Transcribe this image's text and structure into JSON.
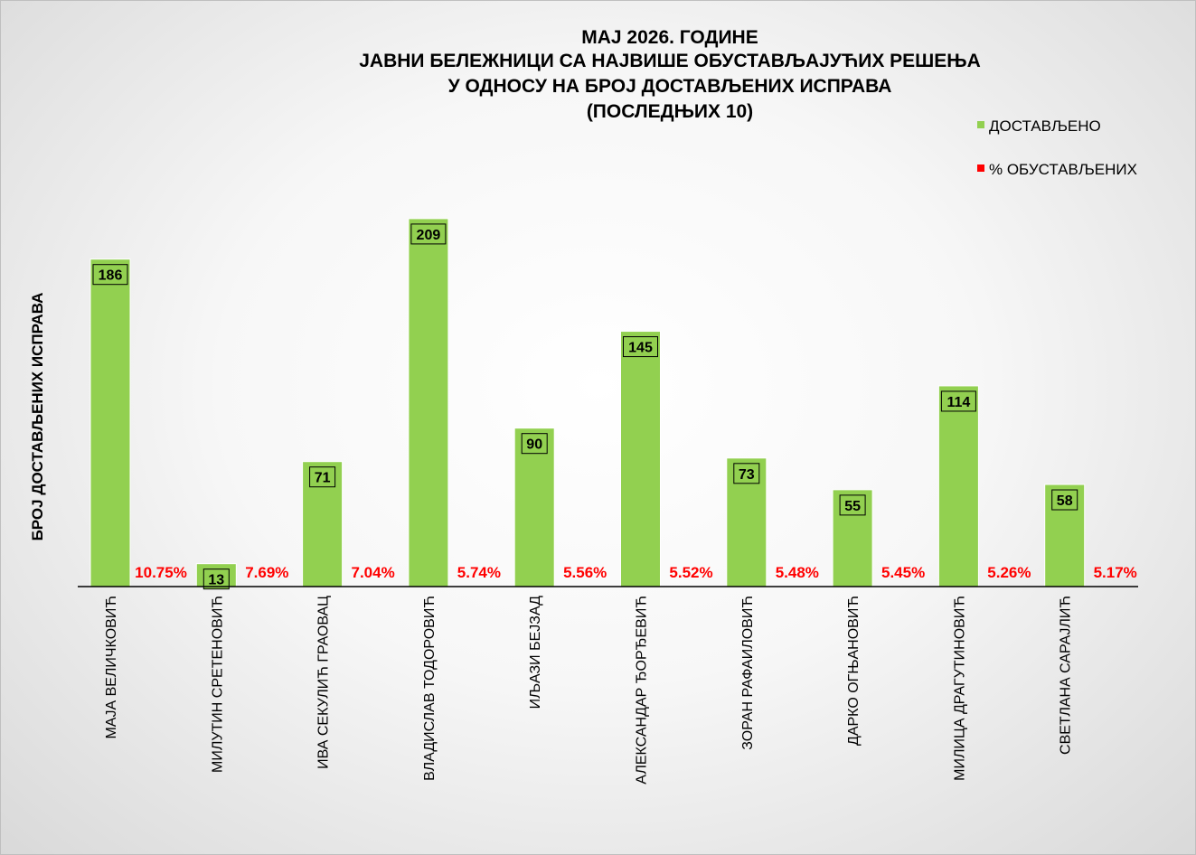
{
  "chart_data": {
    "type": "bar",
    "title": "МАЈ 2026. ГОДИНЕ",
    "subtitle_lines": [
      "ЈАВНИ БЕЛЕЖНИЦИ СА НАЈВИШЕ ОБУСТАВЉАЈУЋИХ РЕШЕЊА",
      "У ОДНОСУ НА БРОЈ ДОСТАВЉЕНИХ ИСПРАВА",
      "(ПОСЛЕДЊИХ 10)"
    ],
    "ylabel": "БРОЈ ДОСТАВЉЕНИХ ИСПРАВА",
    "xlabel": "",
    "ylim": [
      0,
      230
    ],
    "grid": false,
    "legend_position": "top-right",
    "categories": [
      "МАЈА ВЕЛИЧКОВИЋ",
      "МИЛУТИН СРЕТЕНОВИЋ",
      "ИВА СЕКУЛИЋ ГРАОВАЦ",
      "ВЛАДИСЛАВ ТОДОРОВИЋ",
      "ИЉАЗИ БЕЈЗАД",
      "АЛЕКСАНДАР ЂОРЂЕВИЋ",
      "ЗОРАН РАФАИЛОВИЋ",
      "ДАРКО ОГЊАНОВИЋ",
      "МИЛИЦА ДРАГУТИНОВИЋ",
      "СВЕТЛАНА САРАЈЛИЋ"
    ],
    "series": [
      {
        "name": "ДОСТАВЉЕНО",
        "color": "#92d050",
        "values": [
          186,
          13,
          71,
          209,
          90,
          145,
          73,
          55,
          114,
          58
        ]
      },
      {
        "name": "% ОБУСТАВЉЕНИХ",
        "color": "#ff0000",
        "values": [
          10.75,
          7.69,
          7.04,
          5.74,
          5.56,
          5.52,
          5.48,
          5.45,
          5.26,
          5.17
        ],
        "labels": [
          "10.75%",
          "7.69%",
          "7.04%",
          "5.74%",
          "5.56%",
          "5.52%",
          "5.48%",
          "5.45%",
          "5.26%",
          "5.17%"
        ]
      }
    ]
  }
}
